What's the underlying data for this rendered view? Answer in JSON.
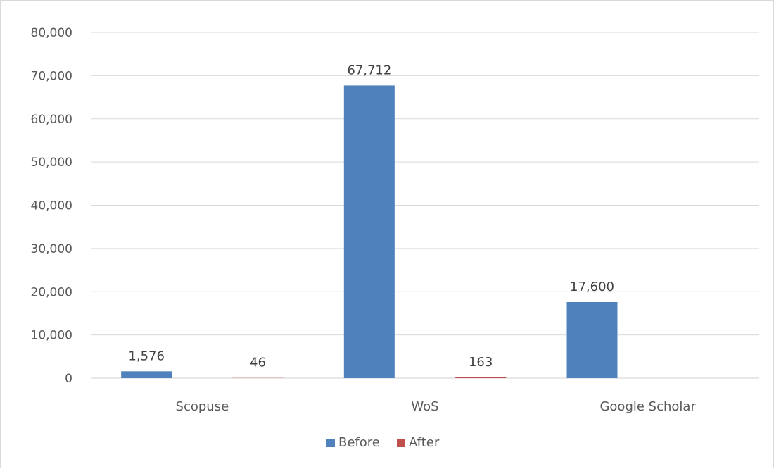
{
  "chart_data": {
    "type": "bar",
    "title": "",
    "xlabel": "",
    "ylabel": "",
    "categories": [
      "Scopuse",
      "WoS",
      "Google Scholar"
    ],
    "series": [
      {
        "name": "Before",
        "color": "#4f81bd",
        "values": [
          1576,
          67712,
          17600
        ],
        "labels": [
          "1,576",
          "67,712",
          "17,600"
        ]
      },
      {
        "name": "After",
        "color": "#c0504d",
        "values": [
          46,
          163,
          null
        ],
        "labels": [
          "46",
          "163",
          null
        ]
      }
    ],
    "ylim": [
      0,
      80000
    ],
    "yticks": [
      0,
      10000,
      20000,
      30000,
      40000,
      50000,
      60000,
      70000,
      80000
    ],
    "ytick_labels": [
      "0",
      "10,000",
      "20,000",
      "30,000",
      "40,000",
      "50,000",
      "60,000",
      "70,000",
      "80,000"
    ],
    "grid": true,
    "legend_position": "bottom"
  }
}
